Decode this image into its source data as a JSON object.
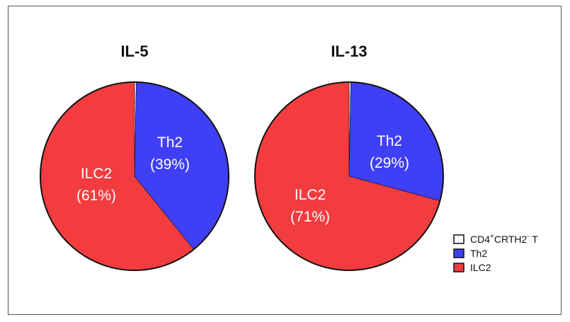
{
  "chart_data": [
    {
      "type": "pie",
      "title": "IL-5",
      "slices": [
        {
          "label": "CD4⁺CRTH2⁻ T",
          "value": 0.3,
          "color": "#ffffff",
          "text": [
            "",
            ""
          ]
        },
        {
          "label": "Th2",
          "value": 39,
          "color": "#3f3ff5",
          "text": [
            "Th2",
            "(39%)"
          ]
        },
        {
          "label": "ILC2",
          "value": 61,
          "color": "#f23c3f",
          "text": [
            "ILC2",
            "(61%)"
          ]
        }
      ]
    },
    {
      "type": "pie",
      "title": "IL-13",
      "slices": [
        {
          "label": "CD4⁺CRTH2⁻ T",
          "value": 0.3,
          "color": "#ffffff",
          "text": [
            "",
            ""
          ]
        },
        {
          "label": "Th2",
          "value": 29,
          "color": "#3f3ff5",
          "text": [
            "Th2",
            "(29%)"
          ]
        },
        {
          "label": "ILC2",
          "value": 71,
          "color": "#f23c3f",
          "text": [
            "ILC2",
            "(71%)"
          ]
        }
      ]
    }
  ],
  "legend": {
    "placement": "right",
    "items": [
      {
        "base": "CD4",
        "sup1": "+",
        "mid": "CRTH2",
        "sup2": "-",
        "tail": " T",
        "color": "#ffffff"
      },
      {
        "base": "Th2",
        "sup1": "",
        "mid": "",
        "sup2": "",
        "tail": "",
        "color": "#3f3ff5"
      },
      {
        "base": "ILC2",
        "sup1": "",
        "mid": "",
        "sup2": "",
        "tail": "",
        "color": "#f23c3f"
      }
    ]
  }
}
